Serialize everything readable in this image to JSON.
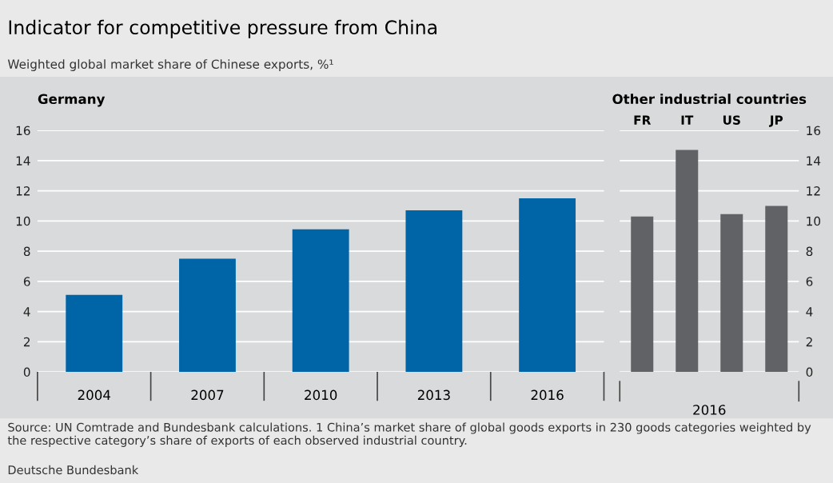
{
  "chart_data": [
    {
      "type": "bar",
      "title": "Indicator for competitive pressure from China",
      "subtitle": "Weighted global market share of Chinese exports, %¹",
      "categories": [
        "2004",
        "2007",
        "2010",
        "2013",
        "2016"
      ],
      "series": [
        {
          "color": "#0065a6",
          "values": [
            5.1,
            7.5,
            9.45,
            10.7,
            11.5
          ]
        }
      ],
      "ylim": [
        0,
        16
      ],
      "yticks": [
        0,
        2,
        4,
        6,
        8,
        10,
        12,
        14,
        16
      ],
      "grid": "y",
      "legend": false,
      "annotations": [
        "Germany",
        "Source: UN Comtrade and Bundesbank calculations. 1 China’s market share of global goods exports in 230 goods categories weighted by the respective category’s share of exports of each observed industrial country.",
        "Deutsche Bundesbank"
      ]
    },
    {
      "type": "bar",
      "title": "Other industrial countries",
      "xlabel": "2016",
      "categories": [
        "FR",
        "IT",
        "US",
        "JP"
      ],
      "series": [
        {
          "color": "#616265",
          "values": [
            10.3,
            14.7,
            10.45,
            11.0
          ]
        }
      ],
      "ylim": [
        0,
        16
      ],
      "yticks": [
        0,
        2,
        4,
        6,
        8,
        10,
        12,
        14,
        16
      ],
      "grid": "y",
      "legend": false
    }
  ]
}
